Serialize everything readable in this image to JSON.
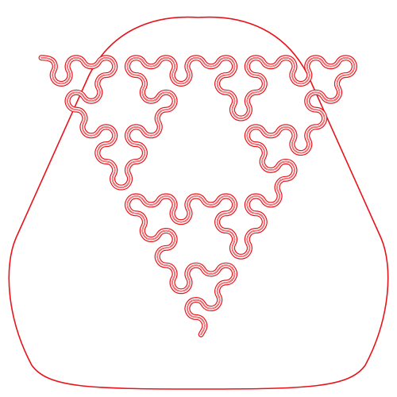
{
  "figure": {
    "stroke_color": "#e8141b",
    "background_color": "#ffffff",
    "shape": "rounded-triangle",
    "pattern": "space-filling-curve",
    "curve_style": "double-line"
  }
}
